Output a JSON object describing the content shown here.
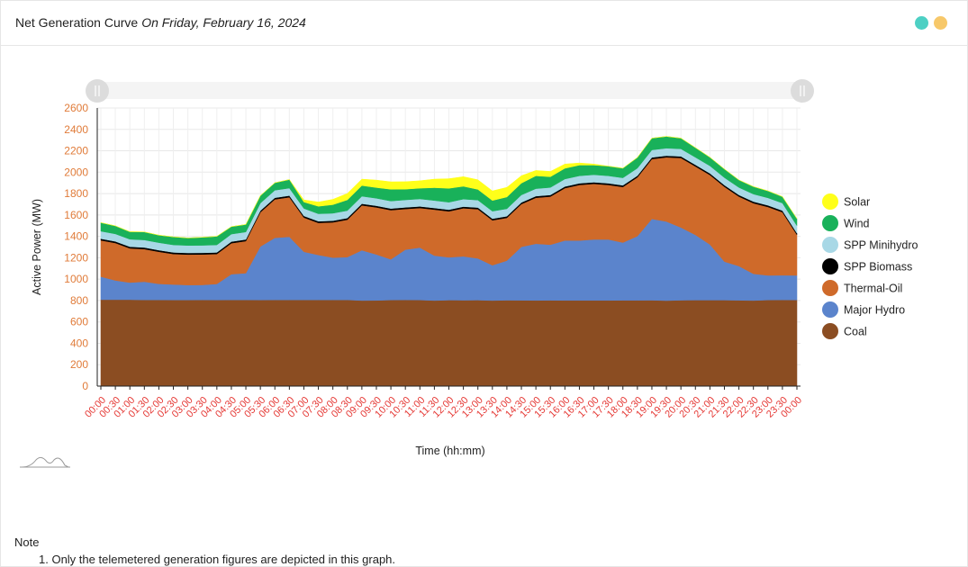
{
  "header": {
    "title": "Net Generation Curve",
    "date": "On Friday, February 16, 2024",
    "colors": {
      "dot1": "#4dd0c4",
      "dot2": "#f7c86a"
    }
  },
  "note": {
    "heading": "Note",
    "items": [
      "1. Only the telemetered generation figures are depicted in this graph."
    ]
  },
  "chart_data": {
    "type": "area",
    "stacked": true,
    "xlabel": "Time (hh:mm)",
    "ylabel": "Active Power (MW)",
    "ylim": [
      0,
      2600
    ],
    "yticks": [
      0,
      200,
      400,
      600,
      800,
      1000,
      1200,
      1400,
      1600,
      1800,
      2000,
      2200,
      2400,
      2600
    ],
    "grid": true,
    "legend_position": "right",
    "x_tick_color": "#e53935",
    "y_tick_color": "#e07b39",
    "x": [
      "00:00",
      "00:30",
      "01:00",
      "01:30",
      "02:00",
      "02:30",
      "03:00",
      "03:30",
      "04:00",
      "04:30",
      "05:00",
      "05:30",
      "06:00",
      "06:30",
      "07:00",
      "07:30",
      "08:00",
      "08:30",
      "09:00",
      "09:30",
      "10:00",
      "10:30",
      "11:00",
      "11:30",
      "12:00",
      "12:30",
      "13:00",
      "13:30",
      "14:00",
      "14:30",
      "15:00",
      "15:30",
      "16:00",
      "16:30",
      "17:00",
      "17:30",
      "18:00",
      "18:30",
      "19:00",
      "19:30",
      "20:00",
      "20:30",
      "21:00",
      "21:30",
      "22:00",
      "22:30",
      "23:00",
      "23:30",
      "00:00"
    ],
    "series": [
      {
        "name": "Coal",
        "color": "#8b4d22",
        "values": [
          808,
          808,
          808,
          806,
          806,
          805,
          805,
          806,
          805,
          806,
          806,
          805,
          806,
          806,
          806,
          806,
          806,
          806,
          800,
          801,
          805,
          806,
          805,
          800,
          804,
          803,
          804,
          800,
          803,
          802,
          801,
          802,
          801,
          801,
          801,
          801,
          802,
          802,
          803,
          799,
          803,
          804,
          804,
          804,
          802,
          800,
          805,
          806,
          805
        ]
      },
      {
        "name": "Major Hydro",
        "color": "#5b84cc",
        "values": [
          215,
          180,
          160,
          170,
          150,
          145,
          140,
          140,
          150,
          240,
          250,
          500,
          580,
          590,
          450,
          420,
          395,
          400,
          470,
          430,
          380,
          470,
          490,
          420,
          400,
          410,
          390,
          330,
          370,
          500,
          530,
          520,
          560,
          560,
          570,
          570,
          540,
          600,
          760,
          740,
          680,
          610,
          520,
          360,
          320,
          250,
          230,
          230,
          230
        ]
      },
      {
        "name": "Thermal-Oil",
        "color": "#cf6a2a",
        "values": [
          340,
          350,
          320,
          305,
          300,
          285,
          285,
          285,
          280,
          290,
          300,
          320,
          360,
          370,
          320,
          300,
          330,
          350,
          420,
          440,
          460,
          380,
          370,
          430,
          430,
          450,
          460,
          420,
          400,
          400,
          430,
          450,
          490,
          520,
          520,
          510,
          520,
          550,
          560,
          600,
          650,
          640,
          650,
          700,
          650,
          660,
          640,
          590,
          380
        ]
      },
      {
        "name": "SPP Biomass",
        "color": "#000000",
        "values": [
          15,
          15,
          15,
          15,
          15,
          15,
          15,
          15,
          15,
          15,
          15,
          15,
          15,
          15,
          15,
          15,
          15,
          15,
          15,
          15,
          15,
          15,
          15,
          15,
          15,
          15,
          15,
          15,
          15,
          15,
          15,
          15,
          15,
          15,
          15,
          15,
          15,
          15,
          15,
          15,
          15,
          15,
          15,
          15,
          15,
          15,
          15,
          15,
          15
        ]
      },
      {
        "name": "SPP Minihydro",
        "color": "#a8d8e6",
        "values": [
          70,
          70,
          70,
          70,
          70,
          70,
          70,
          70,
          70,
          70,
          70,
          70,
          70,
          70,
          70,
          70,
          70,
          70,
          70,
          70,
          70,
          70,
          70,
          70,
          70,
          70,
          70,
          70,
          70,
          70,
          70,
          70,
          70,
          70,
          70,
          70,
          70,
          70,
          70,
          70,
          70,
          70,
          70,
          70,
          70,
          70,
          70,
          70,
          70
        ]
      },
      {
        "name": "Wind",
        "color": "#19b15a",
        "values": [
          80,
          75,
          70,
          75,
          70,
          75,
          70,
          75,
          80,
          70,
          70,
          70,
          70,
          80,
          60,
          70,
          80,
          100,
          100,
          100,
          110,
          100,
          100,
          120,
          130,
          120,
          100,
          100,
          110,
          110,
          120,
          100,
          100,
          100,
          90,
          90,
          90,
          100,
          110,
          110,
          100,
          90,
          80,
          80,
          70,
          70,
          65,
          60,
          65
        ]
      },
      {
        "name": "Solar",
        "color": "#ffff1a",
        "values": [
          0,
          0,
          0,
          0,
          0,
          0,
          0,
          0,
          0,
          0,
          0,
          0,
          0,
          0,
          20,
          40,
          50,
          60,
          60,
          70,
          70,
          70,
          70,
          80,
          90,
          90,
          90,
          90,
          90,
          70,
          50,
          50,
          40,
          20,
          10,
          0,
          0,
          0,
          0,
          0,
          0,
          0,
          0,
          0,
          0,
          0,
          0,
          0,
          0
        ]
      }
    ]
  }
}
